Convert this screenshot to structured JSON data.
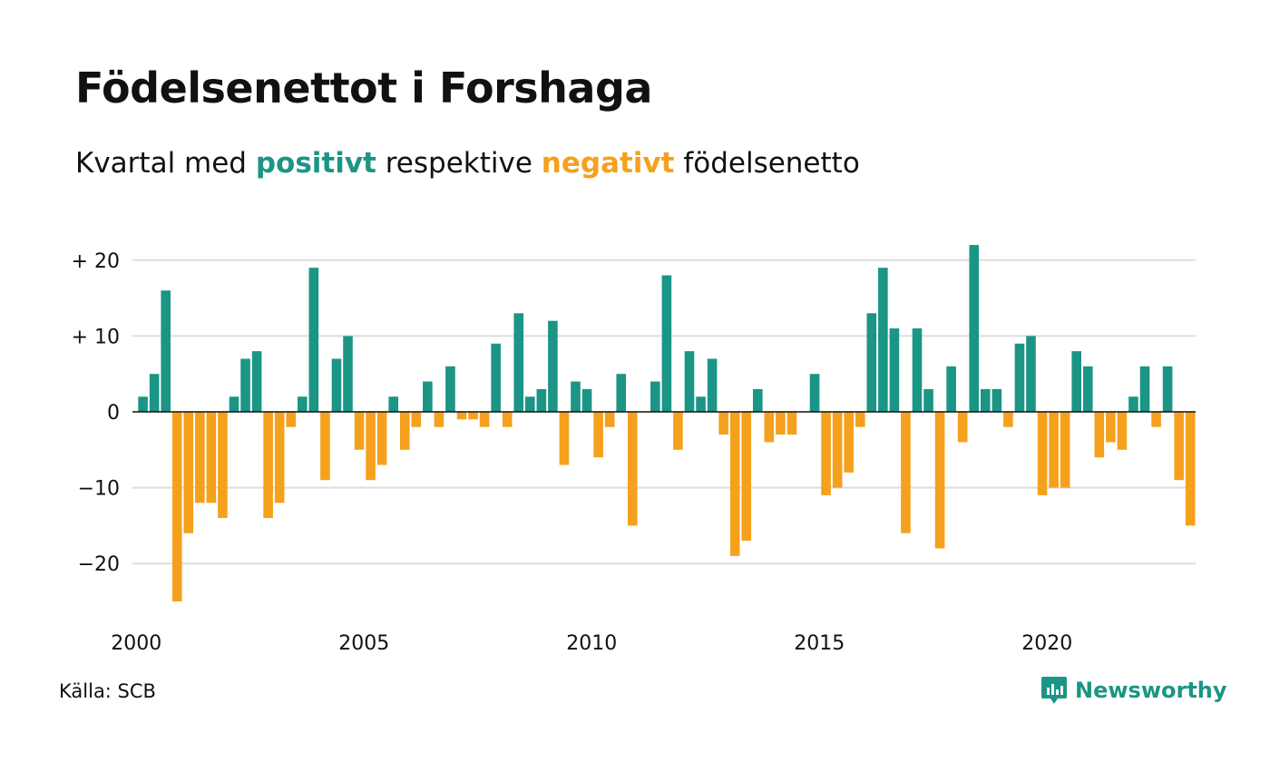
{
  "header": {
    "title": "Födelsenettot i Forshaga",
    "subtitle_prefix": "Kvartal med ",
    "subtitle_pos": "positivt",
    "subtitle_mid": " respektive ",
    "subtitle_neg": "negativt",
    "subtitle_suffix": " födelsenetto"
  },
  "footer": {
    "source": "Källa: SCB",
    "brand": "Newsworthy",
    "brand_icon": "newsworthy-chart-icon"
  },
  "colors": {
    "positive": "#1b9585",
    "negative": "#f5a11d",
    "grid": "#dddddd",
    "zero": "#111111"
  },
  "chart_data": {
    "type": "bar",
    "title": "Födelsenettot i Forshaga",
    "subtitle": "Kvartal med positivt respektive negativt födelsenetto",
    "start_year": 2000,
    "periods_per_year": 4,
    "ylim": [
      -25,
      22
    ],
    "yticks": [
      20,
      10,
      0,
      -10,
      -20
    ],
    "ytick_labels": [
      "+ 20",
      "+ 10",
      "0",
      "−10",
      "−20"
    ],
    "xticks": [
      "2000",
      "2005",
      "2010",
      "2015",
      "2020"
    ],
    "grid": true,
    "values": [
      2,
      5,
      16,
      -25,
      -16,
      -12,
      -12,
      -14,
      2,
      7,
      8,
      -14,
      -12,
      -2,
      2,
      19,
      -9,
      7,
      10,
      -5,
      -9,
      -7,
      2,
      -5,
      -2,
      4,
      -2,
      6,
      -1,
      -1,
      -2,
      9,
      -2,
      13,
      2,
      3,
      12,
      -7,
      4,
      3,
      -6,
      -2,
      5,
      -15,
      0,
      4,
      18,
      -5,
      8,
      2,
      7,
      -3,
      -19,
      -17,
      3,
      -4,
      -3,
      -3,
      0,
      5,
      -11,
      -10,
      -8,
      -2,
      13,
      19,
      11,
      -16,
      11,
      3,
      -18,
      6,
      -4,
      22,
      3,
      3,
      -2,
      9,
      10,
      -11,
      -10,
      -10,
      8,
      6,
      -6,
      -4,
      -5,
      2,
      6,
      -2,
      6,
      -9,
      -15
    ]
  }
}
